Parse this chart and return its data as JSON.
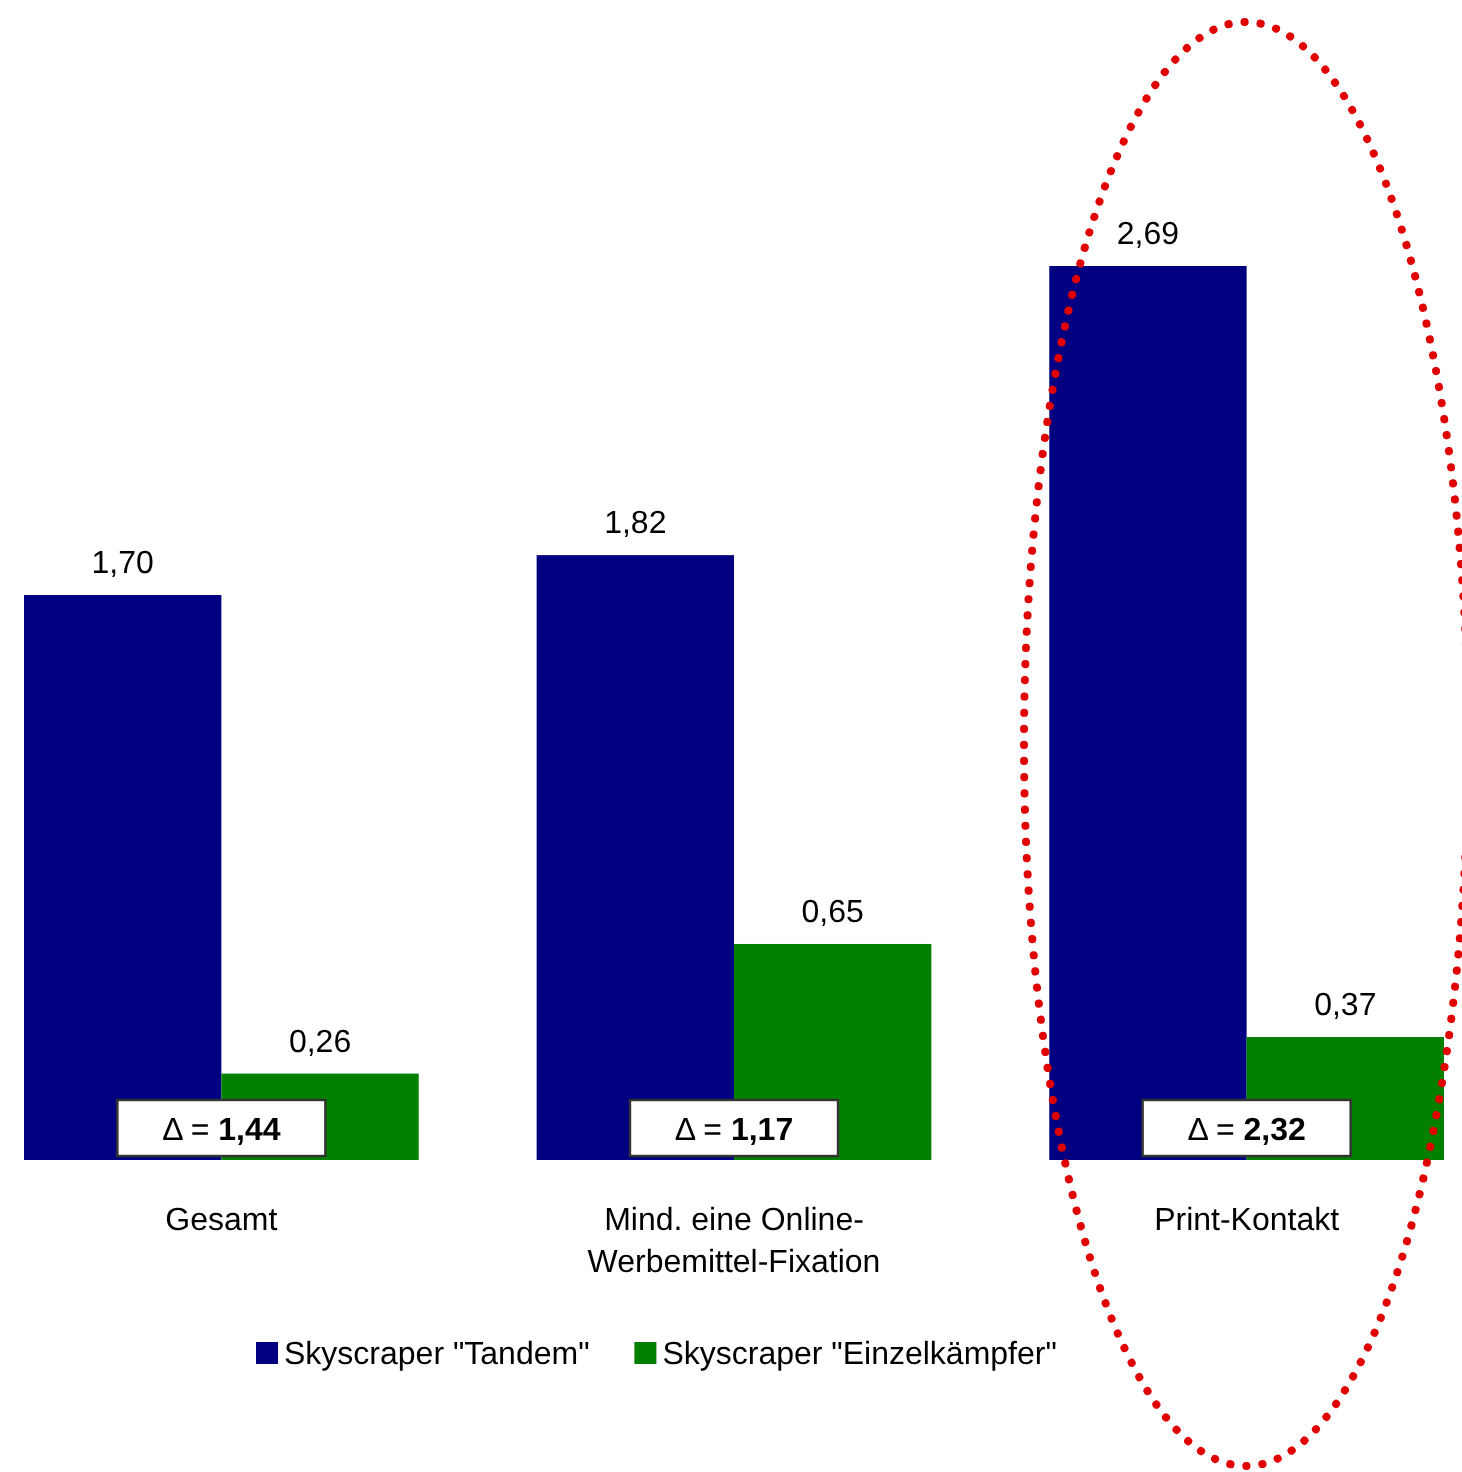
{
  "chart_data": {
    "type": "bar",
    "categories": [
      "Gesamt",
      "Mind. eine Online-Werbemittel-Fixation",
      "Print-Kontakt"
    ],
    "series": [
      {
        "name": "Skyscraper \"Tandem\"",
        "color": "#000080",
        "values": [
          1.7,
          1.82,
          2.69
        ],
        "value_labels": [
          "1,70",
          "1,82",
          "2,69"
        ]
      },
      {
        "name": "Skyscraper \"Einzelkämpfer\"",
        "color": "#008000",
        "values": [
          0.26,
          0.65,
          0.37
        ],
        "value_labels": [
          "0,26",
          "0,65",
          "0,37"
        ]
      }
    ],
    "annotations": [
      "Δ = 1,44",
      "Δ = 1,17",
      "Δ = 2,32"
    ],
    "legend": "bottom"
  }
}
